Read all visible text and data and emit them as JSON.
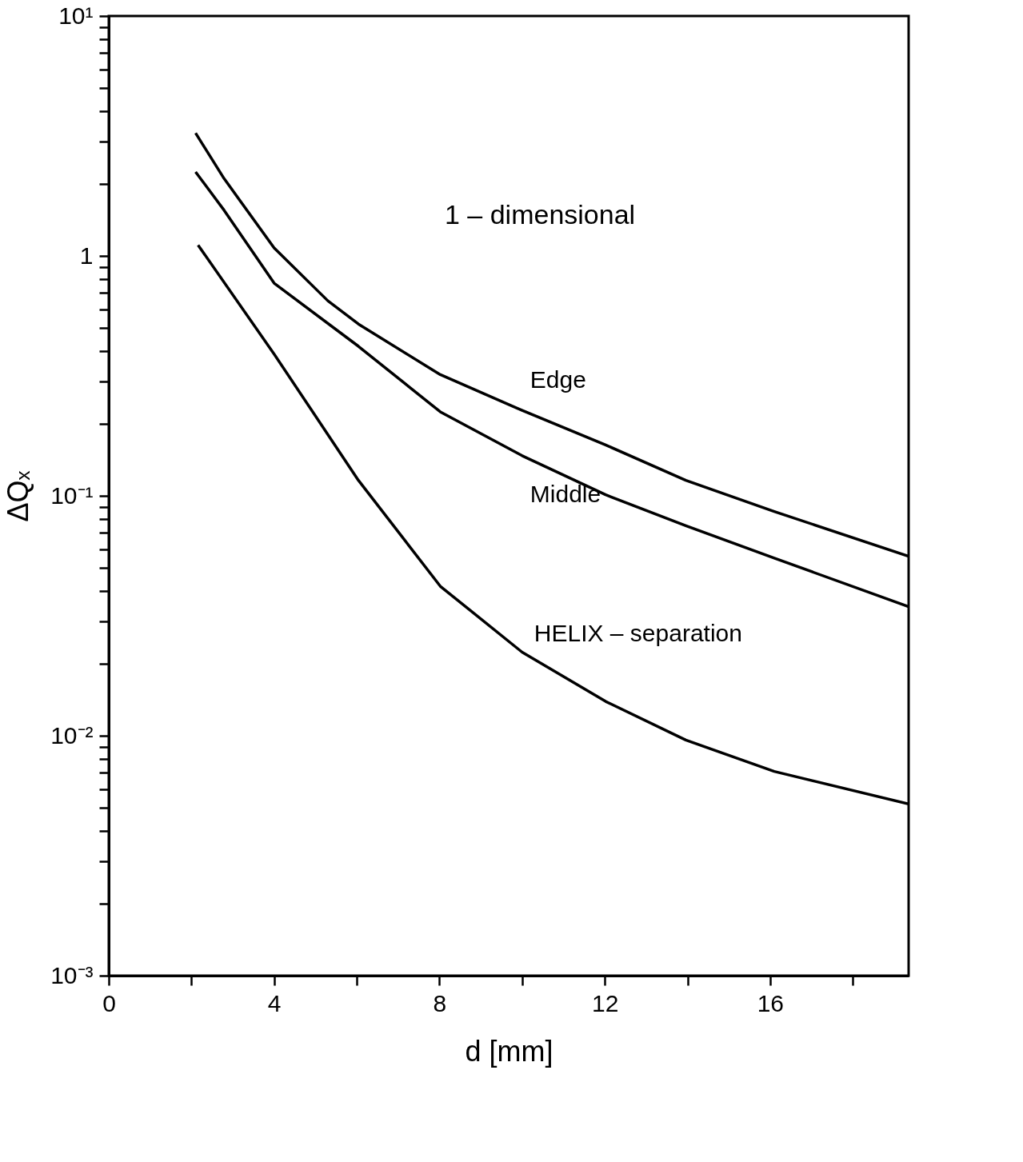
{
  "chart_data": {
    "type": "line",
    "xlabel": "d [mm]",
    "ylabel": "ΔQₓ",
    "log": "y",
    "grid": false,
    "marker": "none",
    "line_style": "solid",
    "xlim": [
      0,
      19.35
    ],
    "ylim": [
      0.001,
      10
    ],
    "xticks": [
      0,
      {
        "value": 2,
        "label": null
      },
      4,
      {
        "value": 6,
        "label": null
      },
      8,
      {
        "value": 10,
        "label": null
      },
      12,
      {
        "value": 14,
        "label": null
      },
      16,
      {
        "value": 18,
        "label": null
      }
    ],
    "yticks": [
      {
        "value": 0.001,
        "label": "10⁻³"
      },
      {
        "value": 0.002,
        "label": null
      },
      {
        "value": 0.003,
        "label": null
      },
      {
        "value": 0.004,
        "label": null
      },
      {
        "value": 0.005,
        "label": null
      },
      {
        "value": 0.006,
        "label": null
      },
      {
        "value": 0.007,
        "label": null
      },
      {
        "value": 0.008,
        "label": null
      },
      {
        "value": 0.009,
        "label": null
      },
      {
        "value": 0.01,
        "label": "10⁻²"
      },
      {
        "value": 0.02,
        "label": null
      },
      {
        "value": 0.03,
        "label": null
      },
      {
        "value": 0.04,
        "label": null
      },
      {
        "value": 0.05,
        "label": null
      },
      {
        "value": 0.06,
        "label": null
      },
      {
        "value": 0.07,
        "label": null
      },
      {
        "value": 0.08,
        "label": null
      },
      {
        "value": 0.09,
        "label": null
      },
      {
        "value": 0.1,
        "label": "10⁻¹"
      },
      {
        "value": 0.2,
        "label": null
      },
      {
        "value": 0.3,
        "label": null
      },
      {
        "value": 0.4,
        "label": null
      },
      {
        "value": 0.5,
        "label": null
      },
      {
        "value": 0.6,
        "label": null
      },
      {
        "value": 0.7,
        "label": null
      },
      {
        "value": 0.8,
        "label": null
      },
      {
        "value": 0.9,
        "label": null
      },
      1,
      {
        "value": 2,
        "label": null
      },
      {
        "value": 3,
        "label": null
      },
      {
        "value": 4,
        "label": null
      },
      {
        "value": 5,
        "label": null
      },
      {
        "value": 6,
        "label": null
      },
      {
        "value": 7,
        "label": null
      },
      {
        "value": 8,
        "label": null
      },
      {
        "value": 9,
        "label": null
      },
      {
        "value": 10,
        "label": "10¹"
      }
    ],
    "annotations": [
      "1 – dimensional"
    ],
    "series": [
      {
        "name": "Edge",
        "color": "#000000",
        "x": [
          2.1,
          2.79,
          4,
          5.3,
          6.04,
          8.02,
          10,
          12.02,
          13.96,
          16.1,
          19.35
        ],
        "values": [
          3.25,
          2.1,
          1.08,
          0.65,
          0.52,
          0.32,
          0.227,
          0.163,
          0.116,
          0.086,
          0.056
        ]
      },
      {
        "name": "Middle",
        "color": "#000000",
        "x": [
          2.1,
          2.79,
          4,
          6.04,
          8.02,
          10,
          12.02,
          13.96,
          16.1,
          19.35
        ],
        "values": [
          2.24,
          1.55,
          0.77,
          0.42,
          0.224,
          0.147,
          0.101,
          0.075,
          0.055,
          0.0345
        ]
      },
      {
        "name": "HELIX – separation",
        "color": "#000000",
        "x": [
          2.16,
          4,
          6.04,
          8.02,
          10,
          12.02,
          13.96,
          16.1,
          19.35
        ],
        "values": [
          1.11,
          0.39,
          0.116,
          0.042,
          0.0223,
          0.0139,
          0.0096,
          0.0071,
          0.0052
        ]
      }
    ]
  }
}
